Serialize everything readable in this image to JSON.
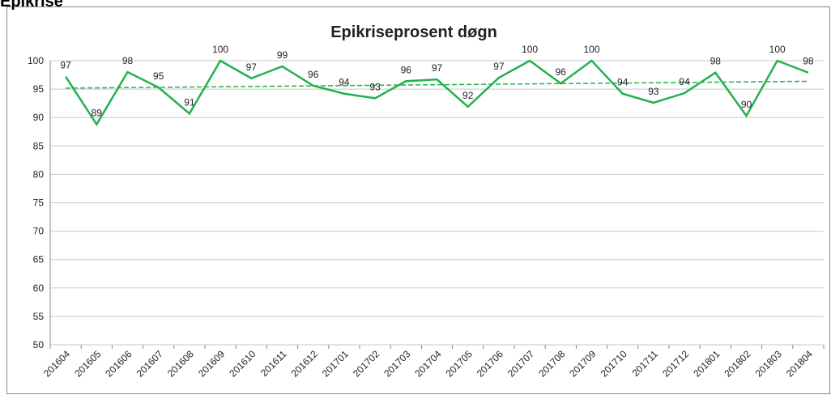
{
  "header": {
    "title": "Epikrise"
  },
  "chart_data": {
    "type": "line",
    "title": "Epikriseprosent døgn",
    "categories": [
      "201604",
      "201605",
      "201606",
      "201607",
      "201608",
      "201609",
      "201610",
      "201611",
      "201612",
      "201701",
      "201702",
      "201703",
      "201704",
      "201705",
      "201706",
      "201707",
      "201708",
      "201709",
      "201710",
      "201711",
      "201712",
      "201801",
      "201802",
      "201803",
      "201804"
    ],
    "series": [
      {
        "name": "Epikriseprosent døgn",
        "color": "#22b14c",
        "values": [
          97.2,
          88.8,
          98.0,
          95.3,
          90.7,
          100,
          96.9,
          99.0,
          95.6,
          94.2,
          93.4,
          96.4,
          96.7,
          91.9,
          97.0,
          100,
          96.0,
          100,
          94.2,
          92.6,
          94.3,
          97.9,
          90.3,
          100,
          97.9
        ],
        "value_labels": [
          "97",
          "89",
          "98",
          "95",
          "91",
          "100",
          "97",
          "99",
          "96",
          "94",
          "93",
          "96",
          "97",
          "92",
          "97",
          "100",
          "96",
          "100",
          "94",
          "93",
          "94",
          "98",
          "90",
          "100",
          "98"
        ]
      }
    ],
    "ylim": [
      50,
      100
    ],
    "yticks": [
      50,
      55,
      60,
      65,
      70,
      75,
      80,
      85,
      90,
      95,
      100
    ],
    "grid": true,
    "trendline": true
  }
}
